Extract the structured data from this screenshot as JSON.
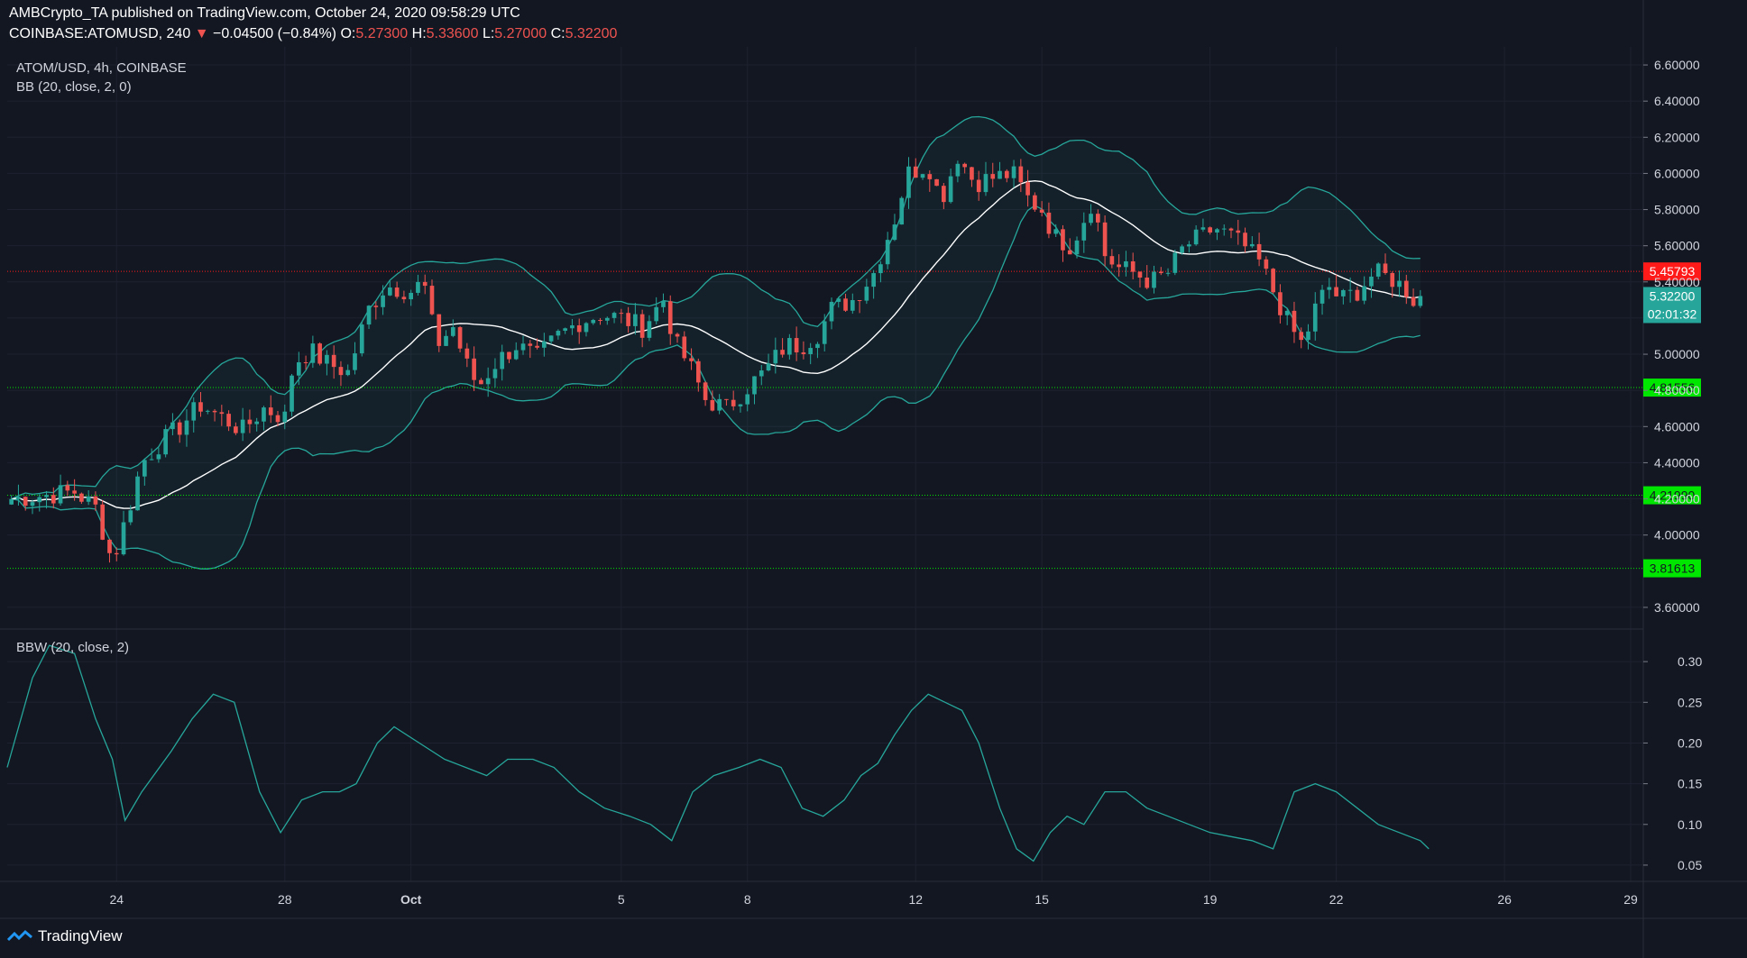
{
  "header": {
    "publisher_line": "AMBCrypto_TA published on TradingView.com, October 24, 2020 09:58:29 UTC",
    "symbol_line": "COINBASE:ATOMUSD, 240",
    "change_arrow": "▼",
    "change_text": "−0.04500 (−0.84%)",
    "o_label": "O:",
    "o_value": "5.27300",
    "h_label": "H:",
    "h_value": "5.33600",
    "l_label": "L:",
    "l_value": "5.27000",
    "c_label": "C:",
    "c_value": "5.32200"
  },
  "main_pane": {
    "title": "ATOM/USD, 4h, COINBASE",
    "indicator": "BB (20, close, 2, 0)"
  },
  "sub_pane": {
    "indicator": "BBW (20, close, 2)"
  },
  "footer": {
    "brand": "TradingView"
  },
  "colors": {
    "bg": "#131722",
    "up": "#26a69a",
    "down": "#ef5350",
    "band": "#26a69a",
    "basis": "#ffffff",
    "support": "#00e600",
    "resistance": "#ff1a1a",
    "grid": "#1e2230",
    "text": "#d1d4dc"
  },
  "chart_data": [
    {
      "type": "candlestick",
      "title": "ATOM/USD, 4h, COINBASE",
      "x_ticks": [
        {
          "label": "24",
          "day": 24
        },
        {
          "label": "28",
          "day": 28
        },
        {
          "label": "Oct",
          "day": 31
        },
        {
          "label": "5",
          "day": 36
        },
        {
          "label": "8",
          "day": 39
        },
        {
          "label": "12",
          "day": 43
        },
        {
          "label": "15",
          "day": 46
        },
        {
          "label": "19",
          "day": 50
        },
        {
          "label": "22",
          "day": 53
        },
        {
          "label": "26",
          "day": 57
        },
        {
          "label": "29",
          "day": 60
        }
      ],
      "x_range_days": [
        21.4,
        60.3
      ],
      "y_ticks": [
        "3.60000",
        "4.00000",
        "4.20000",
        "4.40000",
        "4.60000",
        "4.80000",
        "5.00000",
        "5.20000",
        "5.40000",
        "5.60000",
        "5.80000",
        "6.00000",
        "6.20000",
        "6.40000",
        "6.60000"
      ],
      "ylim": [
        3.48,
        6.7
      ],
      "horizontal_lines": [
        {
          "value": 5.45793,
          "label": "5.45793",
          "kind": "resistance"
        },
        {
          "value": 4.81556,
          "label": "4.81556",
          "kind": "support"
        },
        {
          "value": 4.2199,
          "label": "4.21990",
          "kind": "support"
        },
        {
          "value": 3.81613,
          "label": "3.81613",
          "kind": "support"
        }
      ],
      "last_price": {
        "value": 5.322,
        "label": "5.32200",
        "countdown": "02:01:32"
      },
      "close_keypoints": [
        [
          21.5,
          4.2
        ],
        [
          22.3,
          4.22
        ],
        [
          23.0,
          4.24
        ],
        [
          23.5,
          4.15
        ],
        [
          23.9,
          3.85
        ],
        [
          24.3,
          4.15
        ],
        [
          24.6,
          4.4
        ],
        [
          25.0,
          4.5
        ],
        [
          25.5,
          4.6
        ],
        [
          26.0,
          4.72
        ],
        [
          26.5,
          4.65
        ],
        [
          27.0,
          4.58
        ],
        [
          27.5,
          4.7
        ],
        [
          28.0,
          4.65
        ],
        [
          28.2,
          4.95
        ],
        [
          28.6,
          5.02
        ],
        [
          29.0,
          4.95
        ],
        [
          29.5,
          4.9
        ],
        [
          30.0,
          5.25
        ],
        [
          30.4,
          5.38
        ],
        [
          31.0,
          5.35
        ],
        [
          31.3,
          5.4
        ],
        [
          31.6,
          5.05
        ],
        [
          32.0,
          5.15
        ],
        [
          32.3,
          4.95
        ],
        [
          32.6,
          4.82
        ],
        [
          33.0,
          4.95
        ],
        [
          33.5,
          5.05
        ],
        [
          34.0,
          4.98
        ],
        [
          34.5,
          5.1
        ],
        [
          35.0,
          5.18
        ],
        [
          35.5,
          5.22
        ],
        [
          36.0,
          5.2
        ],
        [
          36.5,
          5.15
        ],
        [
          37.0,
          5.3
        ],
        [
          37.3,
          5.05
        ],
        [
          37.6,
          4.95
        ],
        [
          38.0,
          4.75
        ],
        [
          38.5,
          4.7
        ],
        [
          39.0,
          4.82
        ],
        [
          39.4,
          4.9
        ],
        [
          39.9,
          5.05
        ],
        [
          40.3,
          5.05
        ],
        [
          40.7,
          5.12
        ],
        [
          41.0,
          5.25
        ],
        [
          41.5,
          5.3
        ],
        [
          42.0,
          5.45
        ],
        [
          42.5,
          5.75
        ],
        [
          42.8,
          6.0
        ],
        [
          43.3,
          6.05
        ],
        [
          43.6,
          5.85
        ],
        [
          44.0,
          6.1
        ],
        [
          44.4,
          5.95
        ],
        [
          44.9,
          5.98
        ],
        [
          45.3,
          6.0
        ],
        [
          45.7,
          5.85
        ],
        [
          46.0,
          5.8
        ],
        [
          46.3,
          5.65
        ],
        [
          46.7,
          5.6
        ],
        [
          47.0,
          5.75
        ],
        [
          47.2,
          5.85
        ],
        [
          47.5,
          5.55
        ],
        [
          47.8,
          5.48
        ],
        [
          48.2,
          5.45
        ],
        [
          48.6,
          5.4
        ],
        [
          49.0,
          5.45
        ],
        [
          49.4,
          5.6
        ],
        [
          49.8,
          5.65
        ],
        [
          50.1,
          5.7
        ],
        [
          50.5,
          5.65
        ],
        [
          50.8,
          5.6
        ],
        [
          51.2,
          5.5
        ],
        [
          51.6,
          5.3
        ],
        [
          51.9,
          5.15
        ],
        [
          52.2,
          5.05
        ],
        [
          52.5,
          5.25
        ],
        [
          52.8,
          5.38
        ],
        [
          53.1,
          5.3
        ],
        [
          53.5,
          5.35
        ],
        [
          53.9,
          5.45
        ],
        [
          54.3,
          5.42
        ],
        [
          54.7,
          5.35
        ],
        [
          54.9,
          5.28
        ],
        [
          55.1,
          5.32
        ]
      ]
    },
    {
      "type": "line",
      "title": "BBW (20, close, 2)",
      "y_ticks": [
        "0.05",
        "0.10",
        "0.15",
        "0.20",
        "0.25",
        "0.30"
      ],
      "ylim": [
        0.03,
        0.34
      ],
      "x": [
        21.4,
        22.0,
        22.4,
        23.0,
        23.5,
        23.9,
        24.2,
        24.6,
        25.3,
        25.8,
        26.3,
        26.8,
        27.4,
        27.9,
        28.4,
        28.9,
        29.3,
        29.7,
        30.2,
        30.6,
        31.2,
        31.8,
        32.3,
        32.8,
        33.3,
        33.9,
        34.4,
        35.0,
        35.6,
        36.2,
        36.7,
        37.2,
        37.7,
        38.2,
        38.8,
        39.3,
        39.8,
        40.3,
        40.8,
        41.3,
        41.7,
        42.1,
        42.5,
        42.9,
        43.3,
        43.7,
        44.1,
        44.5,
        45.0,
        45.4,
        45.8,
        46.2,
        46.6,
        47.0,
        47.5,
        48.0,
        48.5,
        49.0,
        49.5,
        50.0,
        50.5,
        51.0,
        51.5,
        52.0,
        52.5,
        53.0,
        53.5,
        54.0,
        54.5,
        55.0,
        55.2
      ],
      "values": [
        0.17,
        0.28,
        0.32,
        0.31,
        0.23,
        0.18,
        0.105,
        0.14,
        0.19,
        0.23,
        0.26,
        0.25,
        0.14,
        0.09,
        0.13,
        0.14,
        0.14,
        0.15,
        0.2,
        0.22,
        0.2,
        0.18,
        0.17,
        0.16,
        0.18,
        0.18,
        0.17,
        0.14,
        0.12,
        0.11,
        0.1,
        0.08,
        0.14,
        0.16,
        0.17,
        0.18,
        0.17,
        0.12,
        0.11,
        0.13,
        0.16,
        0.175,
        0.21,
        0.24,
        0.26,
        0.25,
        0.24,
        0.2,
        0.12,
        0.07,
        0.055,
        0.09,
        0.11,
        0.1,
        0.14,
        0.14,
        0.12,
        0.11,
        0.1,
        0.09,
        0.085,
        0.08,
        0.07,
        0.14,
        0.15,
        0.14,
        0.12,
        0.1,
        0.09,
        0.08,
        0.07
      ]
    }
  ]
}
